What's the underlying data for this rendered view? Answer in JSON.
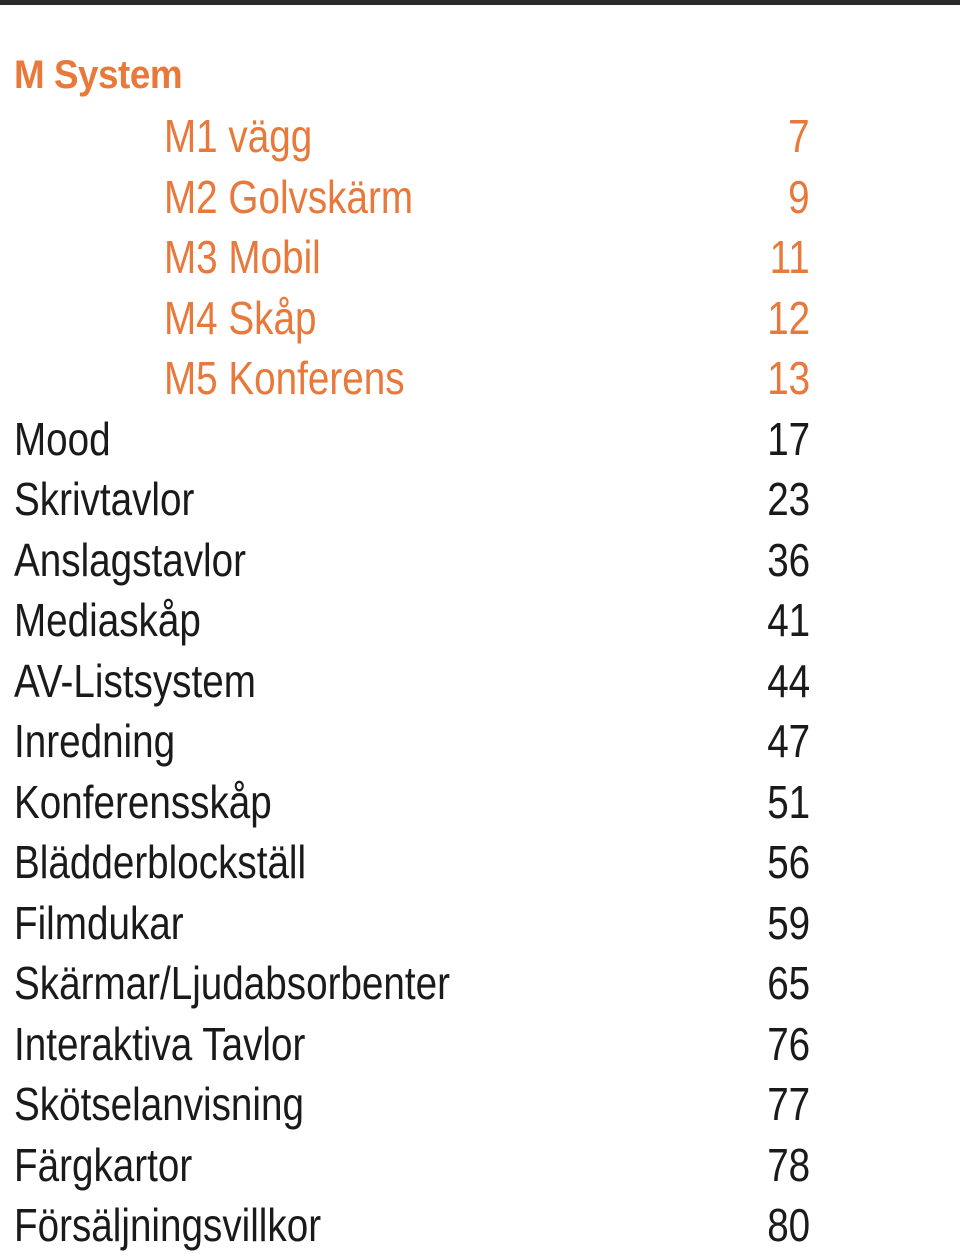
{
  "section": {
    "title": "M System"
  },
  "colors": {
    "accent": "#e8793a",
    "text": "#1a1a1a",
    "rule": "#2a2a2a"
  },
  "toc": {
    "entries": [
      {
        "label": "M1 vägg",
        "page": "7",
        "sub": true
      },
      {
        "label": "M2 Golvskärm",
        "page": "9",
        "sub": true
      },
      {
        "label": "M3 Mobil",
        "page": "11",
        "sub": true
      },
      {
        "label": "M4 Skåp",
        "page": "12",
        "sub": true
      },
      {
        "label": "M5 Konferens",
        "page": "13",
        "sub": true
      },
      {
        "label": "Mood",
        "page": "17",
        "sub": false
      },
      {
        "label": "Skrivtavlor",
        "page": "23",
        "sub": false
      },
      {
        "label": "Anslagstavlor",
        "page": "36",
        "sub": false
      },
      {
        "label": "Mediaskåp",
        "page": "41",
        "sub": false
      },
      {
        "label": "AV-Listsystem",
        "page": "44",
        "sub": false
      },
      {
        "label": "Inredning",
        "page": "47",
        "sub": false
      },
      {
        "label": "Konferensskåp",
        "page": "51",
        "sub": false
      },
      {
        "label": "Blädderblockställ",
        "page": "56",
        "sub": false
      },
      {
        "label": "Filmdukar",
        "page": "59",
        "sub": false
      },
      {
        "label": "Skärmar/Ljudabsorbenter",
        "page": "65",
        "sub": false
      },
      {
        "label": "Interaktiva Tavlor",
        "page": "76",
        "sub": false
      },
      {
        "label": "Skötselanvisning",
        "page": "77",
        "sub": false
      },
      {
        "label": "Färgkartor",
        "page": "78",
        "sub": false
      },
      {
        "label": "Försäljningsvillkor",
        "page": "80",
        "sub": false
      }
    ]
  }
}
